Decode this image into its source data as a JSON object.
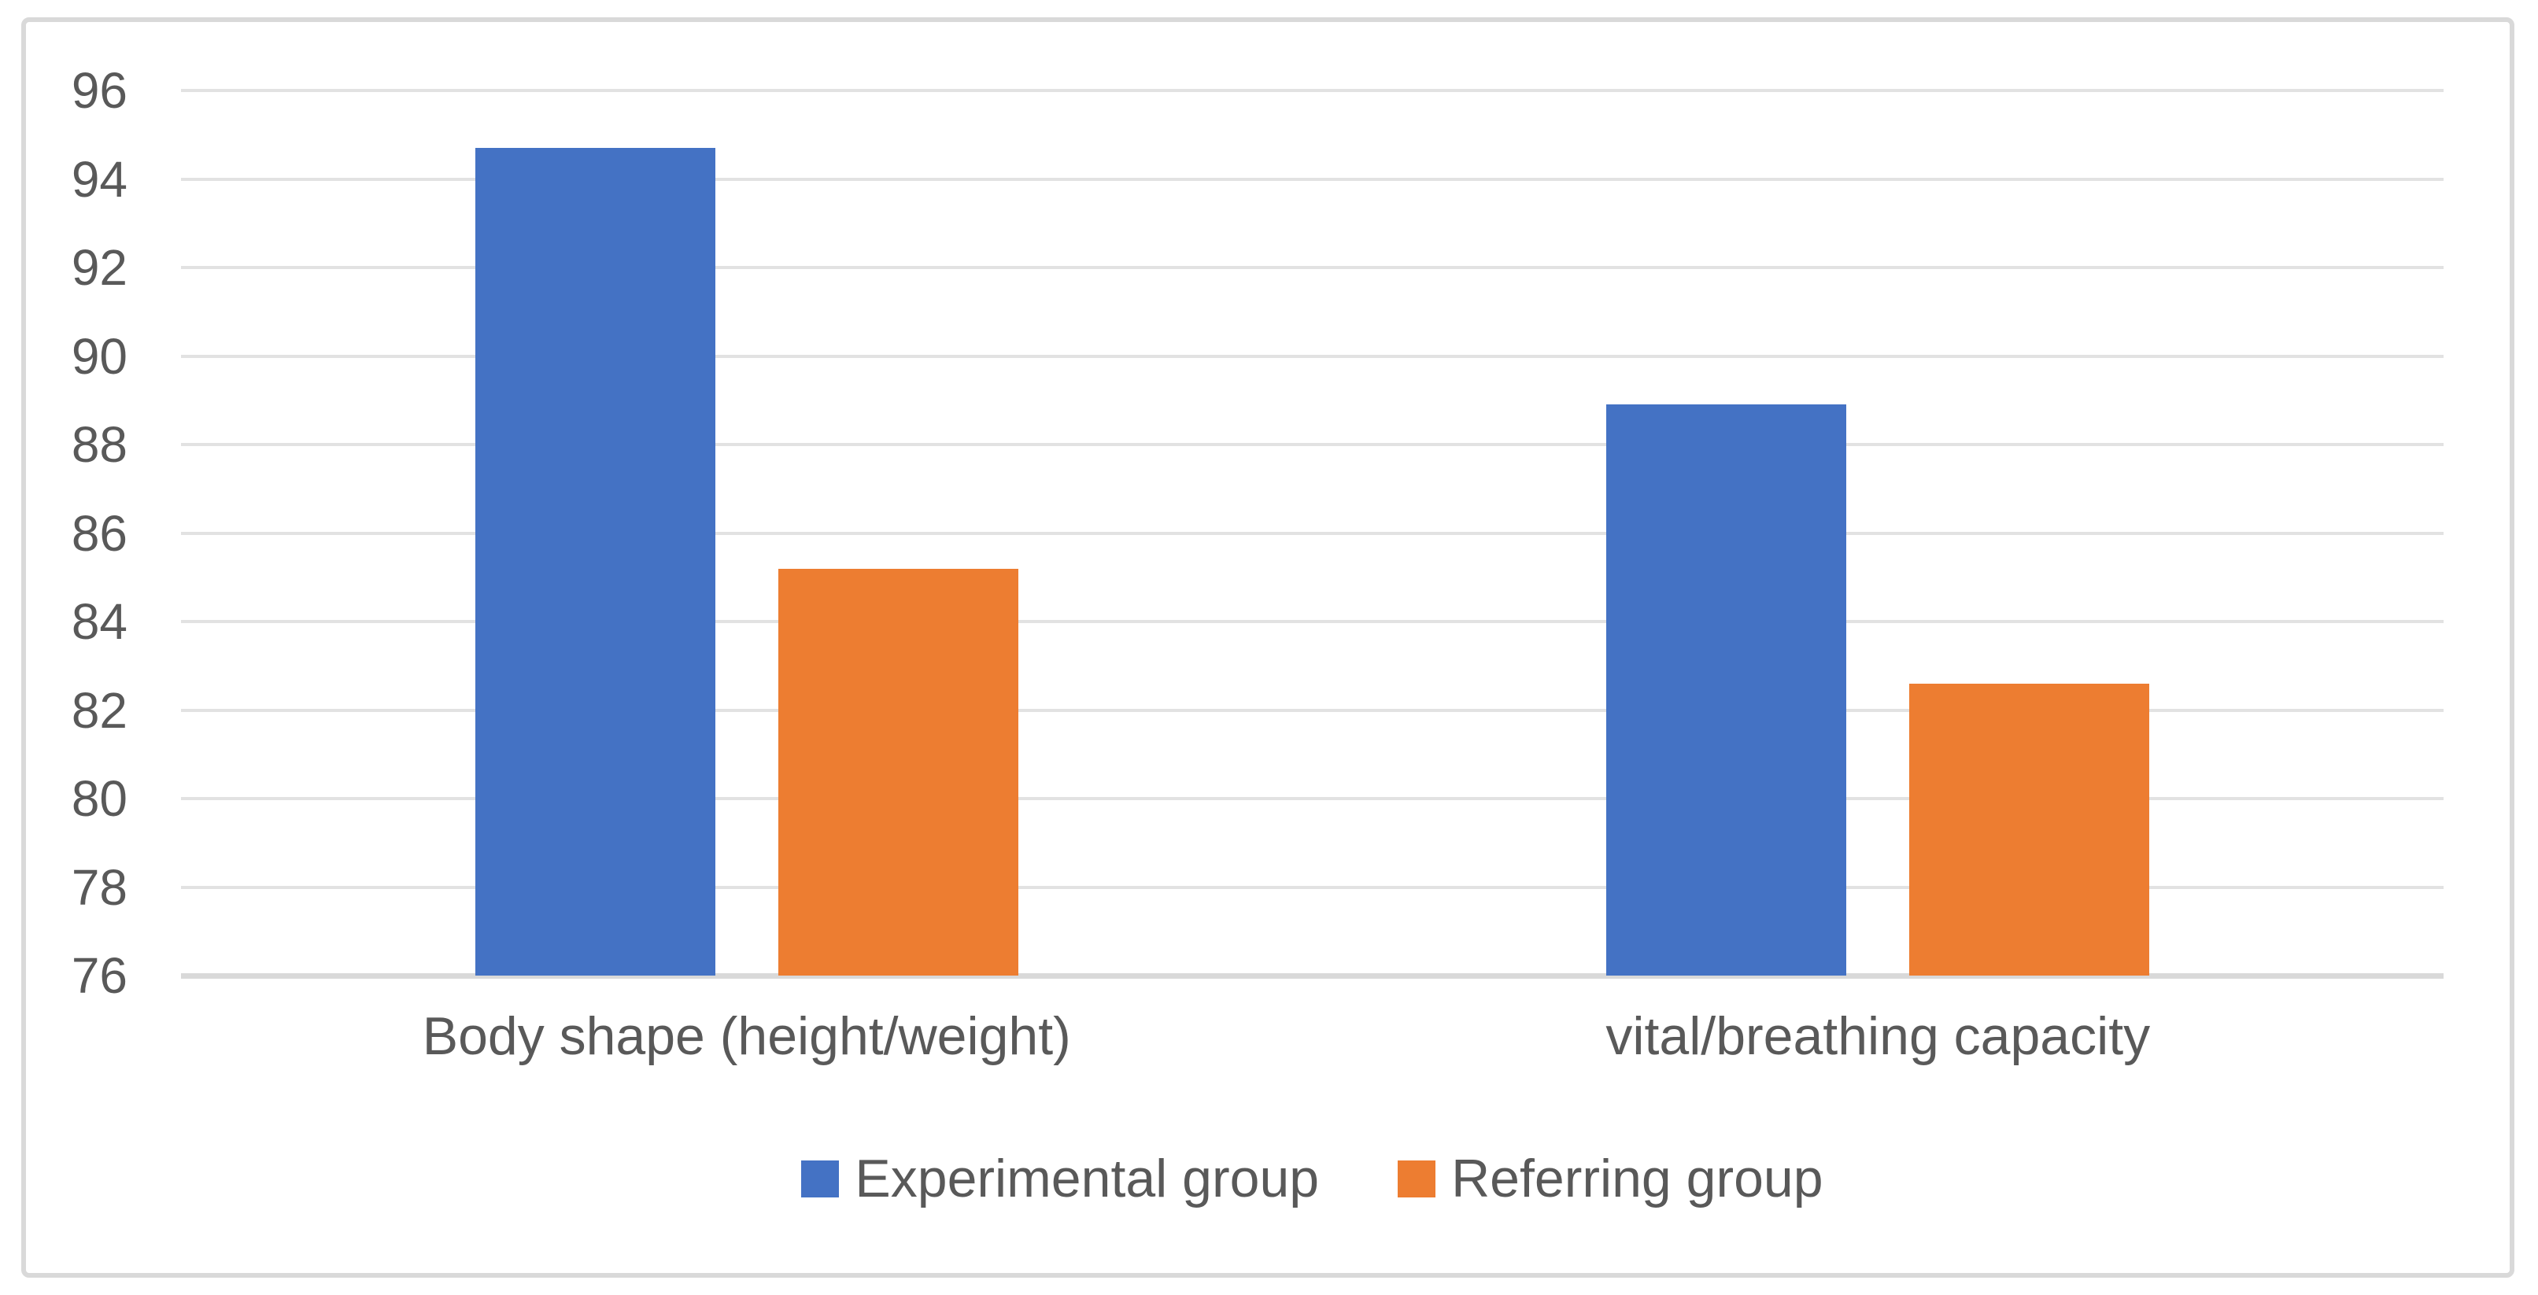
{
  "chart_data": {
    "type": "bar",
    "title": "",
    "xlabel": "",
    "ylabel": "",
    "categories": [
      "Body shape (height/weight)",
      "vital/breathing capacity"
    ],
    "series": [
      {
        "name": "Experimental group",
        "color": "#4472C4",
        "values": [
          94.7,
          88.9
        ]
      },
      {
        "name": "Referring group",
        "color": "#ED7D31",
        "values": [
          85.2,
          82.6
        ]
      }
    ],
    "ylim": [
      76,
      96
    ],
    "ytick_step": 2,
    "yticks": [
      96,
      94,
      92,
      90,
      88,
      86,
      84,
      82,
      80,
      78,
      76
    ],
    "grid": true,
    "legend_position": "bottom-center",
    "colors": {
      "axis_text": "#595959",
      "gridline": "#E2E2E2",
      "axis_line": "#D9D9D9",
      "frame_border": "#D9D9D9",
      "background": "#FFFFFF"
    }
  }
}
